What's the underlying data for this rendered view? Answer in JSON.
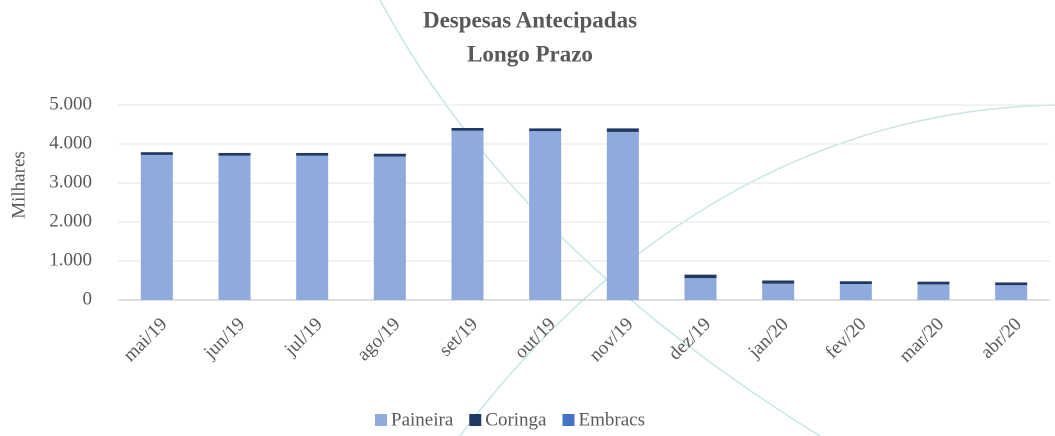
{
  "chart_data": {
    "type": "bar",
    "stacked": true,
    "title": "Despesas Antecipadas",
    "subtitle": "Longo Prazo",
    "y_label": "Milhares",
    "categories": [
      "mai/19",
      "jun/19",
      "jul/19",
      "ago/19",
      "set/19",
      "out/19",
      "nov/19",
      "dez/19",
      "jan/20",
      "fev/20",
      "mar/20",
      "abr/20"
    ],
    "series": [
      {
        "name": "Paineira",
        "color": "#8faadc",
        "values": [
          3720,
          3700,
          3700,
          3680,
          4340,
          4330,
          4310,
          560,
          420,
          410,
          400,
          380
        ]
      },
      {
        "name": "Coringa",
        "color": "#1f3864",
        "values": [
          70,
          70,
          70,
          70,
          70,
          70,
          90,
          90,
          80,
          70,
          70,
          70
        ]
      },
      {
        "name": "Embracs",
        "color": "#4472c4",
        "values": [
          0,
          0,
          0,
          0,
          0,
          0,
          0,
          0,
          0,
          0,
          0,
          0
        ]
      }
    ],
    "ylim": [
      0,
      5000
    ],
    "yticks": [
      0,
      {
        "value": 1000,
        "label": "1.000"
      },
      {
        "value": 2000,
        "label": "2.000"
      },
      {
        "value": 3000,
        "label": "3.000"
      },
      {
        "value": 4000,
        "label": "4.000"
      },
      {
        "value": 5000,
        "label": "5.000"
      }
    ],
    "grid": true,
    "legend": "bottom"
  }
}
